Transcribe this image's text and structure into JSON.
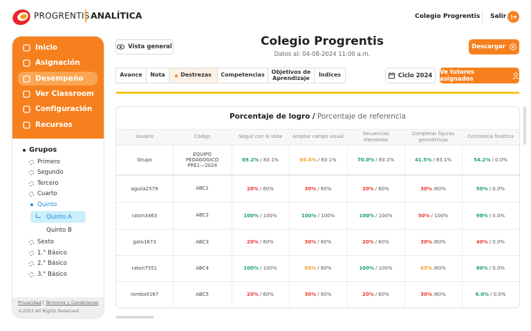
{
  "header": {
    "brand": "PROGRENTIS",
    "product": "ANALÍTICA",
    "school": "Colegio Progrentis",
    "logout": "Salir"
  },
  "menu": {
    "items": [
      "Inicio",
      "Asignación",
      "Desempeño",
      "Ver Classroom",
      "Configuración",
      "Recursos"
    ],
    "active": 2
  },
  "groups": {
    "title": "Grupos",
    "items": [
      {
        "label": "Primero"
      },
      {
        "label": "Segundo"
      },
      {
        "label": "Tercero"
      },
      {
        "label": "Cuarto"
      },
      {
        "label": "Quinto",
        "open": true
      },
      {
        "label": "Quinto A",
        "sub": true,
        "active": true
      },
      {
        "label": "Quinto B",
        "sub": true
      },
      {
        "label": "Sexto"
      },
      {
        "label": "1.° Básico"
      },
      {
        "label": "2.° Básico"
      },
      {
        "label": "3.° Básico"
      }
    ]
  },
  "footer": {
    "privacy": "Privacidad",
    "separator": "|",
    "terms": "Términos y Condiciones",
    "copyright": "©2023 All Rights Reserved"
  },
  "page": {
    "overview": "Vista general",
    "title": "Colegio Progrentis",
    "updated": "Datos al: 04-08-2024 11:00 a.m.",
    "download": "Descargar"
  },
  "tabs": {
    "items": [
      "Avance",
      "Nota",
      "Destrezas",
      "Competencias",
      "Objetivos de Aprendizaje",
      "Índices"
    ],
    "active": 2
  },
  "cycle": "Ciclo 2024",
  "tutors": "Ve tutores asignados",
  "table": {
    "title": "Porcentaje de logro",
    "separator": "/",
    "subtitle": "Porcentaje de referencia",
    "columns": [
      "Usuario",
      "Código",
      "Seguir con la vista",
      "Ampliar campo visual",
      "Secuencias elementos",
      "Completar figuras geométricas",
      "Conciencia fonética"
    ],
    "rows": [
      {
        "user": "Grupo",
        "code": "EQUIPO PEDAGOGICO PRE1—2024",
        "cells": [
          {
            "value": "69.2%",
            "ref": "/ 83.1%",
            "color": "#1a9e6e"
          },
          {
            "value": "65.4%",
            "ref": "/ 83.1%",
            "color": "#f0a020"
          },
          {
            "value": "70.0%",
            "ref": "/ 83.1%",
            "color": "#1a9e6e"
          },
          {
            "value": "41.5%",
            "ref": "/ 83.1%",
            "color": "#1a9e6e"
          },
          {
            "value": "54.2%",
            "ref": "/ 0.0%",
            "color": "#1a9e6e"
          }
        ]
      },
      {
        "user": "aguila2579",
        "code": "ABC1",
        "cells": [
          {
            "value": "20%",
            "ref": "/ 60%",
            "color": "#e53935"
          },
          {
            "value": "30%",
            "ref": "/ 60%",
            "color": "#e53935"
          },
          {
            "value": "20%",
            "ref": "/ 60%",
            "color": "#e53935"
          },
          {
            "value": "30%",
            "ref": "/60%",
            "color": "#e53935"
          },
          {
            "value": "50%",
            "ref": "/ 0.0%",
            "color": "#1a9e6e"
          }
        ]
      },
      {
        "user": "raton3463",
        "code": "ABC2",
        "cells": [
          {
            "value": "100%",
            "ref": "/ 100%",
            "color": "#1a9e6e"
          },
          {
            "value": "100%",
            "ref": "/ 100%",
            "color": "#1a9e6e"
          },
          {
            "value": "100%",
            "ref": "/ 100%",
            "color": "#1a9e6e"
          },
          {
            "value": "50%",
            "ref": "/ 100%",
            "color": "#e53935"
          },
          {
            "value": "98%",
            "ref": "/ 0.0%",
            "color": "#1a9e6e"
          }
        ]
      },
      {
        "user": "gato1673",
        "code": "ABC3",
        "cells": [
          {
            "value": "20%",
            "ref": "/ 60%",
            "color": "#e53935"
          },
          {
            "value": "30%",
            "ref": "/ 60%",
            "color": "#e53935"
          },
          {
            "value": "20%",
            "ref": "/ 60%",
            "color": "#e53935"
          },
          {
            "value": "30%",
            "ref": "/60%",
            "color": "#e53935"
          },
          {
            "value": "40%",
            "ref": "/ 0.0%",
            "color": "#e53935"
          }
        ]
      },
      {
        "user": "raton7551",
        "code": "ABC4",
        "cells": [
          {
            "value": "100%",
            "ref": "/ 100%",
            "color": "#1a9e6e"
          },
          {
            "value": "65%",
            "ref": "/ 60%",
            "color": "#f0a020"
          },
          {
            "value": "100%",
            "ref": "/ 100%",
            "color": "#1a9e6e"
          },
          {
            "value": "65%",
            "ref": "/60%",
            "color": "#f0a020"
          },
          {
            "value": "80%",
            "ref": "/ 0.0%",
            "color": "#1a9e6e"
          }
        ]
      },
      {
        "user": "rombo0167",
        "code": "ABC5",
        "cells": [
          {
            "value": "20%",
            "ref": "/ 60%",
            "color": "#e53935"
          },
          {
            "value": "30%",
            "ref": "/ 60%",
            "color": "#e53935"
          },
          {
            "value": "20%",
            "ref": "/ 60%",
            "color": "#e53935"
          },
          {
            "value": "30%",
            "ref": "/60%",
            "color": "#e53935"
          },
          {
            "value": "6.0%",
            "ref": "/ 0.0%",
            "color": "#1a9e6e"
          }
        ]
      }
    ]
  }
}
